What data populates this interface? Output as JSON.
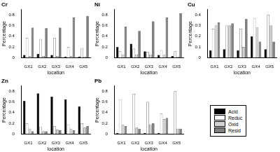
{
  "chart_data": [
    {
      "type": "bar",
      "title": "Cr",
      "x_label": "location",
      "y_label": "Percentage",
      "categories": [
        "GX1",
        "GX2",
        "GX3",
        "GX4",
        "GX5"
      ],
      "series": [
        {
          "name": "Acid",
          "color": "#000000",
          "values": [
            0.05,
            0.07,
            0.05,
            0.02,
            0.02
          ]
        },
        {
          "name": "Reduc",
          "color": "#ffffff",
          "values": [
            0.37,
            0.35,
            0.37,
            0.2,
            0.18
          ]
        },
        {
          "name": "Oxid",
          "color": "#d3d3d3",
          "values": [
            0.03,
            0.03,
            0.03,
            0.03,
            0.02
          ]
        },
        {
          "name": "Resid",
          "color": "#808080",
          "values": [
            0.56,
            0.55,
            0.56,
            0.75,
            0.78
          ]
        }
      ],
      "ylim": [
        0,
        0.9
      ],
      "yticks": [
        0,
        0.2,
        0.4,
        0.6,
        0.8
      ],
      "grid": false
    },
    {
      "type": "bar",
      "title": "Ni",
      "x_label": "location",
      "y_label": "Percentage",
      "categories": [
        "GX1",
        "GX2",
        "GX3",
        "GX4",
        "GX5"
      ],
      "series": [
        {
          "name": "Acid",
          "color": "#000000",
          "values": [
            0.2,
            0.26,
            0.12,
            0.05,
            0.03
          ]
        },
        {
          "name": "Reduc",
          "color": "#ffffff",
          "values": [
            0.12,
            0.17,
            0.11,
            0.14,
            0.12
          ]
        },
        {
          "name": "Oxid",
          "color": "#d3d3d3",
          "values": [
            0.06,
            0.06,
            0.06,
            0.05,
            0.02
          ]
        },
        {
          "name": "Resid",
          "color": "#808080",
          "values": [
            0.58,
            0.5,
            0.68,
            0.75,
            0.83
          ]
        }
      ],
      "ylim": [
        0,
        0.9
      ],
      "yticks": [
        0,
        0.2,
        0.4,
        0.6,
        0.8
      ],
      "grid": false
    },
    {
      "type": "bar",
      "title": "Cu",
      "x_label": "location",
      "y_label": "Percentage",
      "categories": [
        "GX1",
        "GX2",
        "GX3",
        "GX4",
        "GX5"
      ],
      "series": [
        {
          "name": "Acid",
          "color": "#000000",
          "values": [
            0.07,
            0.08,
            0.07,
            0.2,
            0.08
          ]
        },
        {
          "name": "Reduc",
          "color": "#ffffff",
          "values": [
            0.27,
            0.3,
            0.27,
            0.37,
            0.4
          ]
        },
        {
          "name": "Oxid",
          "color": "#d3d3d3",
          "values": [
            0.3,
            0.3,
            0.1,
            0.28,
            0.3
          ]
        },
        {
          "name": "Resid",
          "color": "#808080",
          "values": [
            0.33,
            0.32,
            0.36,
            0.15,
            0.15
          ]
        }
      ],
      "ylim": [
        0,
        0.45
      ],
      "yticks": [
        0,
        0.1,
        0.2,
        0.3,
        0.4
      ],
      "grid": false
    },
    {
      "type": "bar",
      "title": "Zn",
      "x_label": "location",
      "y_label": "Percentage",
      "categories": [
        "GX1",
        "GX2",
        "GX3",
        "GX4",
        "GX5"
      ],
      "series": [
        {
          "name": "Acid",
          "color": "#000000",
          "values": [
            0.62,
            0.76,
            0.7,
            0.65,
            0.52
          ]
        },
        {
          "name": "Reduc",
          "color": "#ffffff",
          "values": [
            0.2,
            0.14,
            0.15,
            0.18,
            0.2
          ]
        },
        {
          "name": "Oxid",
          "color": "#d3d3d3",
          "values": [
            0.1,
            0.05,
            0.08,
            0.1,
            0.12
          ]
        },
        {
          "name": "Resid",
          "color": "#808080",
          "values": [
            0.05,
            0.05,
            0.07,
            0.07,
            0.15
          ]
        }
      ],
      "ylim": [
        0,
        0.9
      ],
      "yticks": [
        0,
        0.2,
        0.4,
        0.6,
        0.8
      ],
      "grid": false
    },
    {
      "type": "bar",
      "title": "Pb",
      "x_label": "location",
      "y_label": "Percentage",
      "categories": [
        "GX1",
        "GX2",
        "GX3",
        "GX4",
        "GX5"
      ],
      "series": [
        {
          "name": "Acid",
          "color": "#000000",
          "values": [
            0.02,
            0.01,
            0.02,
            0.02,
            0.01
          ]
        },
        {
          "name": "Reduc",
          "color": "#ffffff",
          "values": [
            0.65,
            0.75,
            0.6,
            0.38,
            0.8
          ]
        },
        {
          "name": "Oxid",
          "color": "#d3d3d3",
          "values": [
            0.18,
            0.12,
            0.18,
            0.28,
            0.1
          ]
        },
        {
          "name": "Resid",
          "color": "#808080",
          "values": [
            0.15,
            0.1,
            0.2,
            0.3,
            0.1
          ]
        }
      ],
      "ylim": [
        0,
        0.9
      ],
      "yticks": [
        0,
        0.2,
        0.4,
        0.6,
        0.8
      ],
      "grid": false,
      "legend": "lower right"
    }
  ]
}
